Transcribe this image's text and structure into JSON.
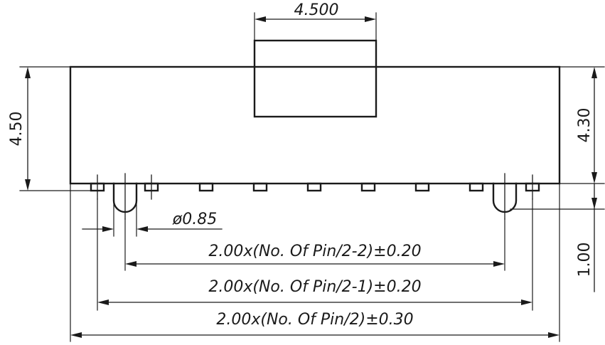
{
  "drawing": {
    "dimensions": {
      "top_width": "4.500",
      "left_height": "4.50",
      "right_height": "4.30",
      "pin_offset": "1.00",
      "hole_diameter": "ø0.85",
      "span_inner": "2.00x(No. Of Pin/2-2)±0.20",
      "span_middle": "2.00x(No. Of Pin/2-1)±0.20",
      "span_outer": "2.00x(No. Of Pin/2)±0.30"
    }
  }
}
